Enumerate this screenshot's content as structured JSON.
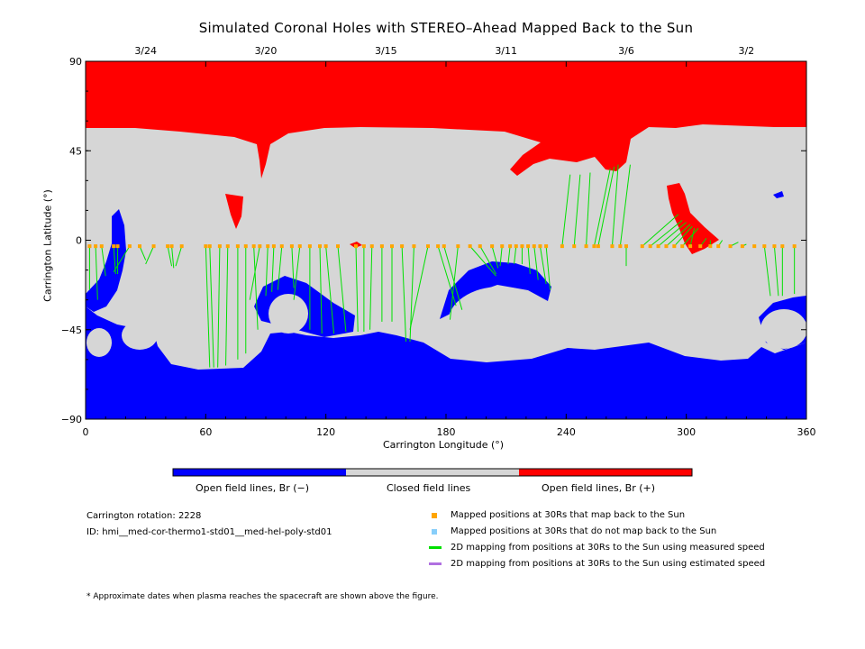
{
  "title": "Simulated Coronal Holes with STEREO–Ahead Mapped Back to the Sun",
  "chart_data": {
    "type": "map",
    "xlabel": "Carrington Longitude (°)",
    "ylabel": "Carrington Latitude (°)",
    "xlim": [
      0,
      360
    ],
    "ylim": [
      -90,
      90
    ],
    "x_ticks": [
      0,
      60,
      120,
      180,
      240,
      300,
      360
    ],
    "y_ticks": [
      90,
      45,
      0,
      -45,
      -90
    ],
    "y_tick_labels": [
      "90",
      "45",
      "0",
      "−45",
      "−90"
    ],
    "date_ticks": [
      {
        "label": "3/24",
        "lon": 30
      },
      {
        "label": "3/20",
        "lon": 90
      },
      {
        "label": "3/15",
        "lon": 150
      },
      {
        "label": "3/11",
        "lon": 210
      },
      {
        "label": "3/6",
        "lon": 270
      },
      {
        "label": "3/2",
        "lon": 330
      }
    ],
    "colorbar": [
      {
        "label": "Open field lines, Br (−)",
        "color": "#0000ff"
      },
      {
        "label": "Closed field lines",
        "color": "#d6d6d6"
      },
      {
        "label": "Open field lines, Br (+)",
        "color": "#ff0000"
      }
    ],
    "legend": [
      {
        "label": "Mapped positions at 30Rs that map back to the Sun",
        "color": "#ffa500",
        "kind": "square"
      },
      {
        "label": "Mapped positions at 30Rs that do not map back to the Sun",
        "color": "#87cefa",
        "kind": "square"
      },
      {
        "label": "2D mapping from positions at 30Rs to the Sun using measured speed",
        "color": "#00e000",
        "kind": "line"
      },
      {
        "label": "2D mapping from positions at 30Rs to the Sun using estimated speed",
        "color": "#b070e0",
        "kind": "line"
      }
    ],
    "mapped_points": [
      {
        "lon": 2,
        "lat": -3,
        "foot_lon": 2,
        "foot_lat": -25
      },
      {
        "lon": 5,
        "lat": -3,
        "foot_lon": 6,
        "foot_lat": -30
      },
      {
        "lon": 8,
        "lat": -3,
        "foot_lon": 10,
        "foot_lat": -18
      },
      {
        "lon": 14,
        "lat": -3,
        "foot_lon": 15,
        "foot_lat": -17
      },
      {
        "lon": 16,
        "lat": -3,
        "foot_lon": 16,
        "foot_lat": -17
      },
      {
        "lon": 22,
        "lat": -3,
        "foot_lon": 14,
        "foot_lat": -16
      },
      {
        "lon": 27,
        "lat": -3,
        "foot_lon": 30,
        "foot_lat": -10
      },
      {
        "lon": 34,
        "lat": -3,
        "foot_lon": 30,
        "foot_lat": -12
      },
      {
        "lon": 41,
        "lat": -3,
        "foot_lon": 43,
        "foot_lat": -13
      },
      {
        "lon": 43,
        "lat": -3,
        "foot_lon": 44,
        "foot_lat": -14
      },
      {
        "lon": 48,
        "lat": -3,
        "foot_lon": 45,
        "foot_lat": -13
      },
      {
        "lon": 60,
        "lat": -3,
        "foot_lon": 62,
        "foot_lat": -64
      },
      {
        "lon": 62,
        "lat": -3,
        "foot_lon": 64,
        "foot_lat": -64
      },
      {
        "lon": 67,
        "lat": -3,
        "foot_lon": 66,
        "foot_lat": -64
      },
      {
        "lon": 71,
        "lat": -3,
        "foot_lon": 70,
        "foot_lat": -63
      },
      {
        "lon": 76,
        "lat": -3,
        "foot_lon": 76,
        "foot_lat": -60
      },
      {
        "lon": 80,
        "lat": -3,
        "foot_lon": 80,
        "foot_lat": -57
      },
      {
        "lon": 84,
        "lat": -3,
        "foot_lon": 86,
        "foot_lat": -45
      },
      {
        "lon": 87,
        "lat": -3,
        "foot_lon": 82,
        "foot_lat": -30
      },
      {
        "lon": 91,
        "lat": -3,
        "foot_lon": 90,
        "foot_lat": -28
      },
      {
        "lon": 94,
        "lat": -3,
        "foot_lon": 93,
        "foot_lat": -26
      },
      {
        "lon": 98,
        "lat": -3,
        "foot_lon": 96,
        "foot_lat": -25
      },
      {
        "lon": 103,
        "lat": -3,
        "foot_lon": 104,
        "foot_lat": -24
      },
      {
        "lon": 107,
        "lat": -3,
        "foot_lon": 104,
        "foot_lat": -30
      },
      {
        "lon": 112,
        "lat": -3,
        "foot_lon": 112,
        "foot_lat": -45
      },
      {
        "lon": 117,
        "lat": -3,
        "foot_lon": 118,
        "foot_lat": -47
      },
      {
        "lon": 120,
        "lat": -3,
        "foot_lon": 124,
        "foot_lat": -47
      },
      {
        "lon": 126,
        "lat": -3,
        "foot_lon": 130,
        "foot_lat": -46
      },
      {
        "lon": 135,
        "lat": -3,
        "foot_lon": 136,
        "foot_lat": -46
      },
      {
        "lon": 139,
        "lat": -3,
        "foot_lon": 139,
        "foot_lat": -46
      },
      {
        "lon": 143,
        "lat": -3,
        "foot_lon": 142,
        "foot_lat": -45
      },
      {
        "lon": 148,
        "lat": -3,
        "foot_lon": 148,
        "foot_lat": -41
      },
      {
        "lon": 153,
        "lat": -3,
        "foot_lon": 153,
        "foot_lat": -41
      },
      {
        "lon": 158,
        "lat": -3,
        "foot_lon": 160,
        "foot_lat": -51
      },
      {
        "lon": 164,
        "lat": -3,
        "foot_lon": 162,
        "foot_lat": -51
      },
      {
        "lon": 171,
        "lat": -3,
        "foot_lon": 162,
        "foot_lat": -45
      },
      {
        "lon": 176,
        "lat": -3,
        "foot_lon": 185,
        "foot_lat": -33
      },
      {
        "lon": 179,
        "lat": -3,
        "foot_lon": 188,
        "foot_lat": -35
      },
      {
        "lon": 186,
        "lat": -3,
        "foot_lon": 182,
        "foot_lat": -40
      },
      {
        "lon": 192,
        "lat": -3,
        "foot_lon": 205,
        "foot_lat": -18
      },
      {
        "lon": 197,
        "lat": -3,
        "foot_lon": 205,
        "foot_lat": -17
      },
      {
        "lon": 203,
        "lat": -3,
        "foot_lon": 206,
        "foot_lat": -14
      },
      {
        "lon": 208,
        "lat": -3,
        "foot_lon": 207,
        "foot_lat": -13
      },
      {
        "lon": 212,
        "lat": -3,
        "foot_lon": 211,
        "foot_lat": -12
      },
      {
        "lon": 215,
        "lat": -3,
        "foot_lon": 214,
        "foot_lat": -12
      },
      {
        "lon": 218,
        "lat": -3,
        "foot_lon": 218,
        "foot_lat": -12
      },
      {
        "lon": 221,
        "lat": -3,
        "foot_lon": 222,
        "foot_lat": -17
      },
      {
        "lon": 224,
        "lat": -3,
        "foot_lon": 226,
        "foot_lat": -20
      },
      {
        "lon": 227,
        "lat": -3,
        "foot_lon": 230,
        "foot_lat": -22
      },
      {
        "lon": 230,
        "lat": -3,
        "foot_lon": 232,
        "foot_lat": -25
      },
      {
        "lon": 238,
        "lat": -3,
        "foot_lon": 242,
        "foot_lat": 33
      },
      {
        "lon": 244,
        "lat": -3,
        "foot_lon": 247,
        "foot_lat": 33
      },
      {
        "lon": 250,
        "lat": -3,
        "foot_lon": 252,
        "foot_lat": 34
      },
      {
        "lon": 254,
        "lat": -3,
        "foot_lon": 262,
        "foot_lat": 36
      },
      {
        "lon": 256,
        "lat": -3,
        "foot_lon": 264,
        "foot_lat": 37
      },
      {
        "lon": 263,
        "lat": -3,
        "foot_lon": 266,
        "foot_lat": 38
      },
      {
        "lon": 267,
        "lat": -3,
        "foot_lon": 272,
        "foot_lat": 38
      },
      {
        "lon": 270,
        "lat": -3,
        "foot_lon": 270,
        "foot_lat": -13
      },
      {
        "lon": 278,
        "lat": -3,
        "foot_lon": 296,
        "foot_lat": 13
      },
      {
        "lon": 282,
        "lat": -3,
        "foot_lon": 298,
        "foot_lat": 10
      },
      {
        "lon": 286,
        "lat": -3,
        "foot_lon": 300,
        "foot_lat": 9
      },
      {
        "lon": 290,
        "lat": -3,
        "foot_lon": 302,
        "foot_lat": 8
      },
      {
        "lon": 294,
        "lat": -3,
        "foot_lon": 303,
        "foot_lat": 7
      },
      {
        "lon": 298,
        "lat": -3,
        "foot_lon": 306,
        "foot_lat": 6
      },
      {
        "lon": 302,
        "lat": -3,
        "foot_lon": 304,
        "foot_lat": 6
      },
      {
        "lon": 307,
        "lat": -3,
        "foot_lon": 310,
        "foot_lat": 1
      },
      {
        "lon": 312,
        "lat": -3,
        "foot_lon": 312,
        "foot_lat": 0
      },
      {
        "lon": 316,
        "lat": -3,
        "foot_lon": 318,
        "foot_lat": 0
      },
      {
        "lon": 322,
        "lat": -3,
        "foot_lon": 326,
        "foot_lat": -1
      },
      {
        "lon": 328,
        "lat": -3,
        "foot_lon": 330,
        "foot_lat": -2
      },
      {
        "lon": 334,
        "lat": -3,
        "foot_lon": 334,
        "foot_lat": -3
      },
      {
        "lon": 339,
        "lat": -3,
        "foot_lon": 342,
        "foot_lat": -28
      },
      {
        "lon": 344,
        "lat": -3,
        "foot_lon": 346,
        "foot_lat": -28
      },
      {
        "lon": 348,
        "lat": -3,
        "foot_lon": 348,
        "foot_lat": -28
      },
      {
        "lon": 354,
        "lat": -3,
        "foot_lon": 354,
        "foot_lat": -27
      }
    ]
  },
  "info": {
    "rotation": "Carrington rotation: 2228",
    "id": "ID: hmi__med-cor-thermo1-std01__med-hel-poly-std01"
  },
  "footnote": "* Approximate dates when plasma reaches the spacecraft are shown above the figure."
}
